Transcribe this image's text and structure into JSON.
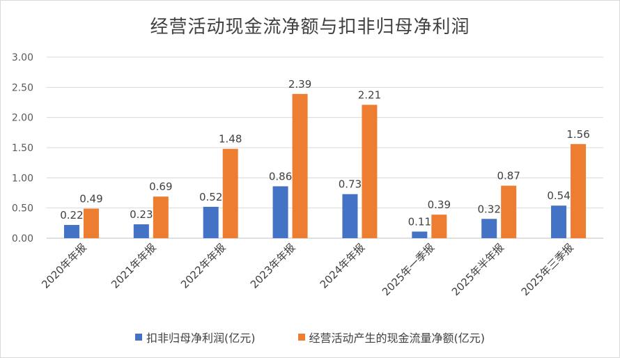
{
  "chart_data": {
    "type": "bar",
    "title": "经营活动现金流净额与扣非归母净利润",
    "categories": [
      "2020年年报",
      "2021年年报",
      "2022年年报",
      "2023年年报",
      "2024年年报",
      "2025年一季报",
      "2025年半年报",
      "2025年三季报"
    ],
    "series": [
      {
        "name": "扣非归母净利润(亿元)",
        "color": "#4472C4",
        "values": [
          0.22,
          0.23,
          0.52,
          0.86,
          0.73,
          0.11,
          0.32,
          0.54
        ]
      },
      {
        "name": "经营活动产生的现金流量净额(亿元)",
        "color": "#ED7D31",
        "values": [
          0.49,
          0.69,
          1.48,
          2.39,
          2.21,
          0.39,
          0.87,
          1.56
        ]
      }
    ],
    "yticks": [
      "0.00",
      "0.50",
      "1.00",
      "1.50",
      "2.00",
      "2.50",
      "3.00"
    ],
    "ylim": [
      0,
      3
    ],
    "grid": true,
    "legend_position": "bottom"
  }
}
